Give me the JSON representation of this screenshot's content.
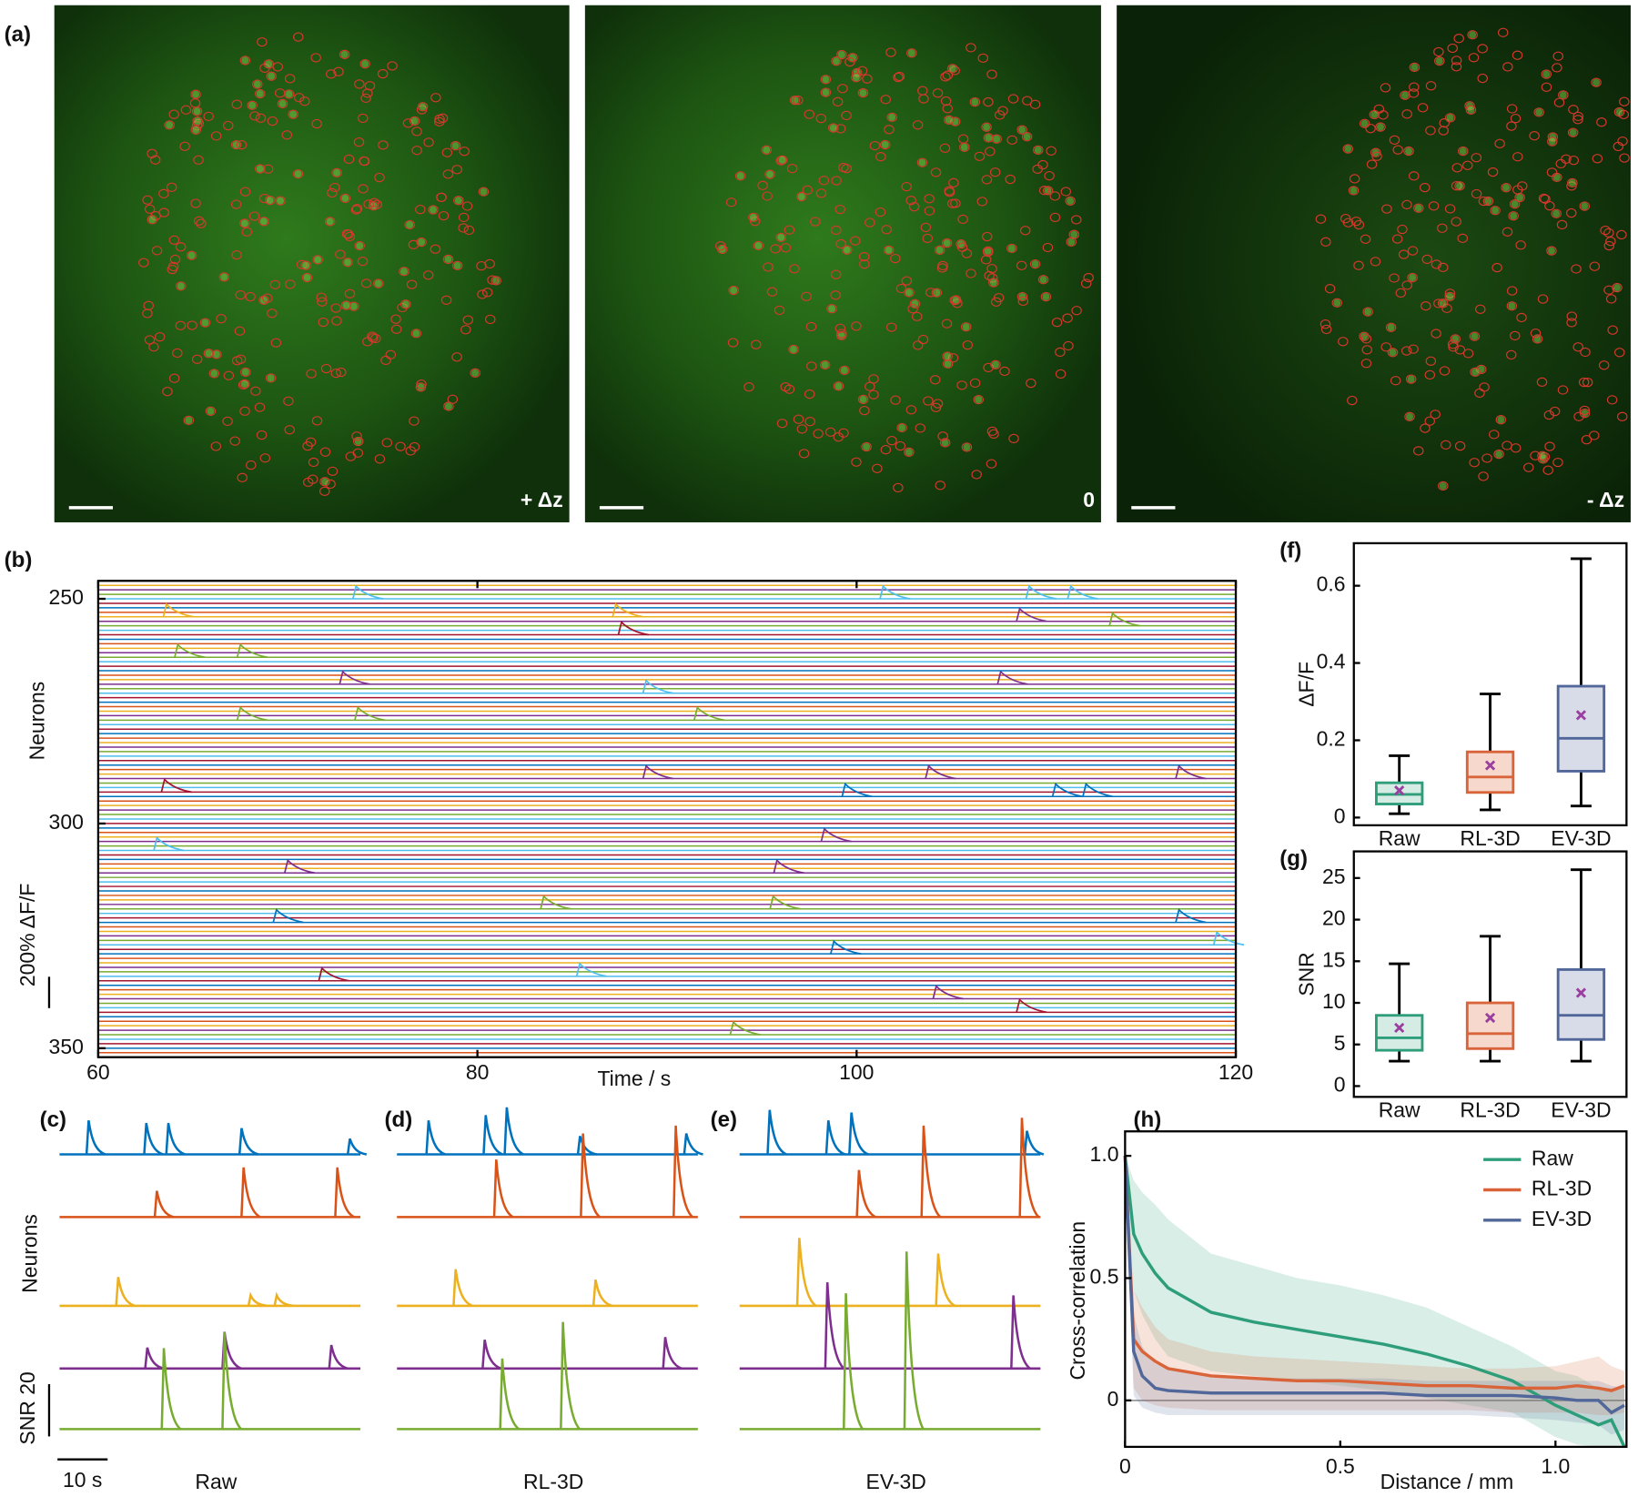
{
  "chart_data": [
    {
      "type": "image",
      "label": "(a)",
      "panels": [
        "+ Δz",
        "0",
        "- Δz"
      ]
    },
    {
      "type": "raster",
      "label": "(b)",
      "x_label": "Time / s",
      "y_label": "Neurons",
      "scalebar_label": "200% ΔF/F",
      "xlim": [
        60,
        120
      ],
      "xticks": [
        60,
        80,
        100,
        120
      ],
      "ylim": [
        246,
        352
      ],
      "yticks": [
        250,
        300,
        350
      ],
      "y_inverted": true,
      "colors": [
        "#0072bd",
        "#d95319",
        "#edb120",
        "#7e2f8e",
        "#77ac30",
        "#4dbeee",
        "#a2142f"
      ],
      "events": {
        "x": [
          73.6,
          87.3,
          101.4,
          109.1,
          111.3,
          63.6,
          87.6,
          108.6,
          113.5,
          64.2,
          67.5,
          72.9,
          107.6,
          67.5,
          73.7,
          88.9,
          91.6,
          88.9,
          103.8,
          117,
          63.5,
          99.4,
          110.5,
          112.1,
          63.1,
          98.3,
          95.8,
          70,
          83.5,
          95.6,
          69.4,
          117,
          85.4,
          104.2,
          108.6,
          93.5,
          119,
          98.8,
          71.8
        ],
        "y": [
          250,
          254,
          250,
          250,
          250,
          254,
          258,
          255,
          256,
          263,
          263,
          269,
          269,
          277,
          277,
          271,
          277,
          290,
          290,
          290,
          293,
          294,
          294,
          294,
          306,
          304,
          311,
          311,
          319,
          319,
          322,
          322,
          334,
          339,
          342,
          347,
          327,
          329,
          335
        ]
      }
    },
    {
      "type": "traces",
      "label": "(c)",
      "title": "Raw",
      "y_label": "Neurons",
      "xlim": [
        0,
        60
      ],
      "scalebar_x": {
        "value": 10,
        "label": "10 s"
      },
      "scalebar_y": {
        "value": 20,
        "label": "SNR 20"
      },
      "series": [
        {
          "color": "#0072bd",
          "t": [
            5.8,
            17.3,
            21.7,
            36.3,
            57.9
          ],
          "values": [
            13,
            12,
            12,
            10,
            6
          ]
        },
        {
          "color": "#d95319",
          "t": [
            19.4,
            36.7,
            55.4
          ],
          "values": [
            10,
            19,
            19
          ]
        },
        {
          "color": "#edb120",
          "t": [
            11.7,
            38.1,
            43.3
          ],
          "values": [
            11,
            4,
            4
          ]
        },
        {
          "color": "#7e2f8e",
          "t": [
            17.5,
            32.9,
            54.2
          ],
          "values": [
            8,
            14,
            9
          ]
        },
        {
          "color": "#77ac30",
          "t": [
            20.8,
            32.9
          ],
          "values": [
            31,
            37
          ]
        }
      ]
    },
    {
      "type": "traces",
      "label": "(d)",
      "title": "RL-3D",
      "xlim": [
        0,
        60
      ],
      "series": [
        {
          "color": "#0072bd",
          "t": [
            6.3,
            17.7,
            21.9,
            36.5,
            57.7
          ],
          "values": [
            13,
            15,
            18,
            7,
            8
          ]
        },
        {
          "color": "#d95319",
          "t": [
            19.8,
            37.1,
            55.6
          ],
          "values": [
            22,
            32,
            35
          ]
        },
        {
          "color": "#edb120",
          "t": [
            11.7,
            39.6
          ],
          "values": [
            14,
            10
          ]
        },
        {
          "color": "#7e2f8e",
          "t": [
            17.5,
            53.5
          ],
          "values": [
            11,
            12
          ]
        },
        {
          "color": "#77ac30",
          "t": [
            21.0,
            33.1
          ],
          "values": [
            27,
            41
          ]
        }
      ]
    },
    {
      "type": "traces",
      "label": "(e)",
      "title": "EV-3D",
      "xlim": [
        0,
        60
      ],
      "series": [
        {
          "color": "#0072bd",
          "t": [
            6.0,
            17.7,
            22.3,
            57.3
          ],
          "values": [
            17,
            13,
            16,
            9
          ]
        },
        {
          "color": "#d95319",
          "t": [
            23.8,
            36.7,
            56.3
          ],
          "values": [
            18,
            35,
            38
          ]
        },
        {
          "color": "#edb120",
          "t": [
            11.9,
            39.6
          ],
          "values": [
            26,
            20
          ]
        },
        {
          "color": "#7e2f8e",
          "t": [
            17.5,
            54.6
          ],
          "values": [
            33,
            28
          ]
        },
        {
          "color": "#77ac30",
          "t": [
            21.2,
            33.3
          ],
          "values": [
            52,
            68
          ]
        }
      ]
    },
    {
      "type": "box",
      "label": "(f)",
      "y_label": "ΔF/F",
      "categories": [
        "Raw",
        "RL-3D",
        "EV-3D"
      ],
      "colors": [
        "#2e9e7a",
        "#d9643a",
        "#51679a"
      ],
      "fills": [
        "#d5ece4",
        "#f6d9cc",
        "#d8dce8"
      ],
      "mean_color": "#9a3fa0",
      "ylim": [
        -0.02,
        0.71
      ],
      "yticks": [
        0,
        0.2,
        0.4,
        0.6
      ],
      "min": [
        0.01,
        0.02,
        0.03
      ],
      "q1": [
        0.035,
        0.065,
        0.12
      ],
      "median": [
        0.06,
        0.105,
        0.205
      ],
      "q3": [
        0.09,
        0.17,
        0.34
      ],
      "max": [
        0.16,
        0.32,
        0.67
      ],
      "mean": [
        0.07,
        0.135,
        0.265
      ]
    },
    {
      "type": "box",
      "label": "(g)",
      "y_label": "SNR",
      "categories": [
        "Raw",
        "RL-3D",
        "EV-3D"
      ],
      "colors": [
        "#2e9e7a",
        "#d9643a",
        "#51679a"
      ],
      "fills": [
        "#d5ece4",
        "#f6d9cc",
        "#d8dce8"
      ],
      "mean_color": "#9a3fa0",
      "ylim": [
        -1.3,
        28.2
      ],
      "yticks": [
        0,
        5,
        10,
        15,
        20,
        25
      ],
      "min": [
        3,
        3,
        3
      ],
      "q1": [
        4.3,
        4.5,
        5.6
      ],
      "median": [
        5.8,
        6.3,
        8.5
      ],
      "q3": [
        8.5,
        10,
        14
      ],
      "max": [
        14.7,
        18,
        26
      ],
      "mean": [
        7,
        8.2,
        11.2
      ]
    },
    {
      "type": "band",
      "label": "(h)",
      "x_label": "Distance / mm",
      "y_label": "Cross-correlation",
      "xlim": [
        0,
        1.165
      ],
      "xticks": [
        0,
        0.5,
        {
          "value": 1,
          "label": "1.0"
        }
      ],
      "ylim": [
        -0.19,
        1.1
      ],
      "yticks": [
        0,
        0.5,
        {
          "value": 1,
          "label": "1.0"
        }
      ],
      "x": [
        0,
        0.02,
        0.04,
        0.07,
        0.1,
        0.2,
        0.3,
        0.4,
        0.5,
        0.6,
        0.7,
        0.8,
        0.9,
        1.0,
        1.05,
        1.1,
        1.13,
        1.16
      ],
      "series": [
        {
          "name": "Raw",
          "color": "#2e9e7a",
          "values": [
            1.0,
            0.68,
            0.6,
            0.52,
            0.46,
            0.36,
            0.32,
            0.29,
            0.26,
            0.23,
            0.19,
            0.14,
            0.08,
            -0.02,
            -0.06,
            -0.1,
            -0.08,
            -0.19
          ],
          "upper": [
            1.0,
            0.9,
            0.85,
            0.8,
            0.74,
            0.6,
            0.55,
            0.5,
            0.47,
            0.43,
            0.38,
            0.3,
            0.22,
            0.12,
            0.1,
            0.05,
            0.05,
            0.05
          ],
          "lower": [
            1.0,
            0.45,
            0.35,
            0.25,
            0.18,
            0.12,
            0.1,
            0.08,
            0.06,
            0.04,
            0.01,
            -0.02,
            -0.05,
            -0.15,
            -0.18,
            -0.19,
            -0.19,
            -0.19
          ]
        },
        {
          "name": "RL-3D",
          "color": "#d9643a",
          "values": [
            1.0,
            0.25,
            0.2,
            0.16,
            0.13,
            0.1,
            0.09,
            0.08,
            0.08,
            0.07,
            0.06,
            0.06,
            0.05,
            0.05,
            0.06,
            0.05,
            0.04,
            0.06
          ],
          "upper": [
            1.0,
            0.45,
            0.38,
            0.3,
            0.25,
            0.2,
            0.18,
            0.17,
            0.16,
            0.15,
            0.14,
            0.13,
            0.13,
            0.14,
            0.16,
            0.18,
            0.14,
            0.12
          ],
          "lower": [
            1.0,
            0.05,
            0.0,
            -0.02,
            -0.03,
            -0.04,
            -0.04,
            -0.04,
            -0.04,
            -0.04,
            -0.04,
            -0.04,
            -0.05,
            -0.05,
            -0.05,
            -0.06,
            -0.06,
            -0.05
          ]
        },
        {
          "name": "EV-3D",
          "color": "#51679a",
          "values": [
            1.0,
            0.2,
            0.1,
            0.05,
            0.04,
            0.03,
            0.03,
            0.03,
            0.03,
            0.03,
            0.02,
            0.02,
            0.02,
            0.01,
            0.0,
            0.0,
            -0.05,
            -0.02
          ],
          "upper": [
            1.0,
            0.35,
            0.22,
            0.15,
            0.13,
            0.1,
            0.09,
            0.09,
            0.09,
            0.09,
            0.08,
            0.08,
            0.08,
            0.08,
            0.08,
            0.08,
            0.06,
            0.05
          ],
          "lower": [
            1.0,
            0.02,
            -0.03,
            -0.05,
            -0.06,
            -0.06,
            -0.06,
            -0.06,
            -0.06,
            -0.06,
            -0.06,
            -0.06,
            -0.07,
            -0.08,
            -0.09,
            -0.1,
            -0.14,
            -0.12
          ]
        }
      ]
    }
  ]
}
